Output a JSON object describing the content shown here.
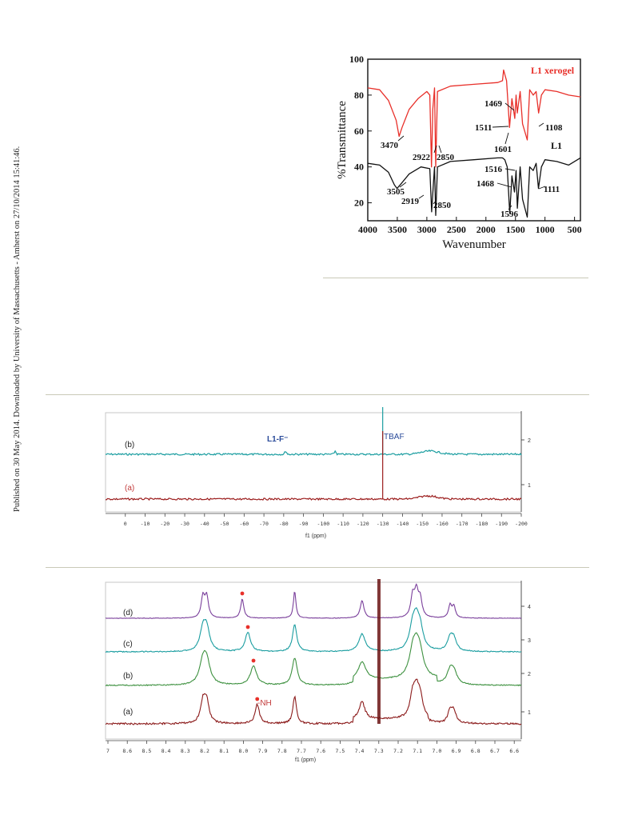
{
  "margin_note": "Published on 30 May 2014. Downloaded by University of Massachusetts - Amherst on 27/10/2014 15:41:46.",
  "chart_data": [
    {
      "type": "line",
      "chart": "ir",
      "xlabel": "Wavenumber",
      "ylabel": "%Transmittance",
      "xlim": [
        4000,
        400
      ],
      "ylim": [
        10,
        100
      ],
      "x_ticks": [
        "4000",
        "3500",
        "3000",
        "2500",
        "2000",
        "1500",
        "1000",
        "500"
      ],
      "y_ticks": [
        "20",
        "40",
        "60",
        "80",
        "100"
      ],
      "series": [
        {
          "name": "L1 xerogel",
          "color": "#e8302a",
          "x": [
            4000,
            3800,
            3650,
            3520,
            3470,
            3420,
            3300,
            3150,
            3000,
            2950,
            2922,
            2900,
            2870,
            2850,
            2820,
            2600,
            2200,
            1800,
            1720,
            1700,
            1650,
            1601,
            1560,
            1511,
            1490,
            1469,
            1420,
            1380,
            1300,
            1260,
            1200,
            1150,
            1108,
            1060,
            1000,
            800,
            600,
            400
          ],
          "y": [
            84,
            83,
            77,
            66,
            57,
            62,
            72,
            78,
            82,
            80,
            40,
            72,
            84,
            40,
            82,
            85,
            86,
            87,
            88,
            94,
            88,
            62,
            78,
            67,
            80,
            70,
            82,
            64,
            55,
            83,
            80,
            82,
            70,
            80,
            83,
            82,
            80,
            79
          ]
        },
        {
          "name": "L1",
          "color": "#111111",
          "x": [
            4000,
            3800,
            3650,
            3550,
            3505,
            3450,
            3300,
            3100,
            2950,
            2919,
            2890,
            2870,
            2850,
            2820,
            2600,
            2200,
            1800,
            1720,
            1680,
            1640,
            1596,
            1560,
            1516,
            1490,
            1468,
            1420,
            1380,
            1300,
            1260,
            1200,
            1150,
            1111,
            1060,
            1000,
            800,
            600,
            400
          ],
          "y": [
            42,
            41,
            37,
            30,
            28,
            30,
            36,
            40,
            39,
            15,
            30,
            40,
            13,
            40,
            43,
            44,
            45,
            45,
            44,
            40,
            14,
            35,
            26,
            38,
            17,
            40,
            22,
            12,
            40,
            38,
            42,
            28,
            40,
            44,
            43,
            41,
            45
          ]
        }
      ],
      "annotations": [
        "3470",
        "2922",
        "2850",
        "1601",
        "1511",
        "1469",
        "1108",
        "3505",
        "2919",
        "2850",
        "1596",
        "1516",
        "1468",
        "1111"
      ]
    },
    {
      "type": "line",
      "chart": "f19-nmr",
      "xlabel": "f1 (ppm)",
      "xlim": [
        10,
        -200
      ],
      "x_ticks": [
        "0",
        "-10",
        "-20",
        "-30",
        "-40",
        "-50",
        "-60",
        "-70",
        "-80",
        "-90",
        "-100",
        "-110",
        "-120",
        "-130",
        "-140",
        "-150",
        "-160",
        "-170",
        "-180",
        "-190",
        "-200"
      ],
      "right_axis": [
        "2",
        "1"
      ],
      "series": [
        {
          "name": "(b)",
          "color": "#1a9da0",
          "baseline": 2.0,
          "peaks_ppm": [
            -81,
            -106,
            -130,
            -154
          ]
        },
        {
          "name": "(a)",
          "color": "#9b1c1c",
          "baseline": 1.0,
          "peaks_ppm": [
            -130,
            -153
          ]
        }
      ],
      "annotations": [
        "L1-F⁻",
        "TBAF"
      ]
    },
    {
      "type": "line",
      "chart": "h1-nmr",
      "xlabel": "f1 (ppm)",
      "xlim": [
        9.0,
        6.5
      ],
      "x_ticks": [
        "7",
        "8.6",
        "8.5",
        "8.4",
        "8.3",
        "8.2",
        "8.1",
        "8.0",
        "7.9",
        "7.8",
        "7.7",
        "7.6",
        "7.5",
        "7.4",
        "7.3",
        "7.2",
        "7.1",
        "7.0",
        "6.9",
        "6.8",
        "6.7",
        "6.6"
      ],
      "right_axis": [
        "4",
        "3",
        "2",
        "1"
      ],
      "series": [
        {
          "name": "(d)",
          "color": "#7a3f9b",
          "baseline": 4,
          "nh_ppm": 7.99
        },
        {
          "name": "(c)",
          "color": "#1a9da0",
          "baseline": 3,
          "nh_ppm": 7.96
        },
        {
          "name": "(b)",
          "color": "#3e9140",
          "baseline": 2,
          "nh_ppm": 7.93
        },
        {
          "name": "(a)",
          "color": "#8b1a1a",
          "baseline": 1,
          "nh_ppm": 7.91
        }
      ],
      "annotations": [
        "-NH"
      ]
    }
  ]
}
